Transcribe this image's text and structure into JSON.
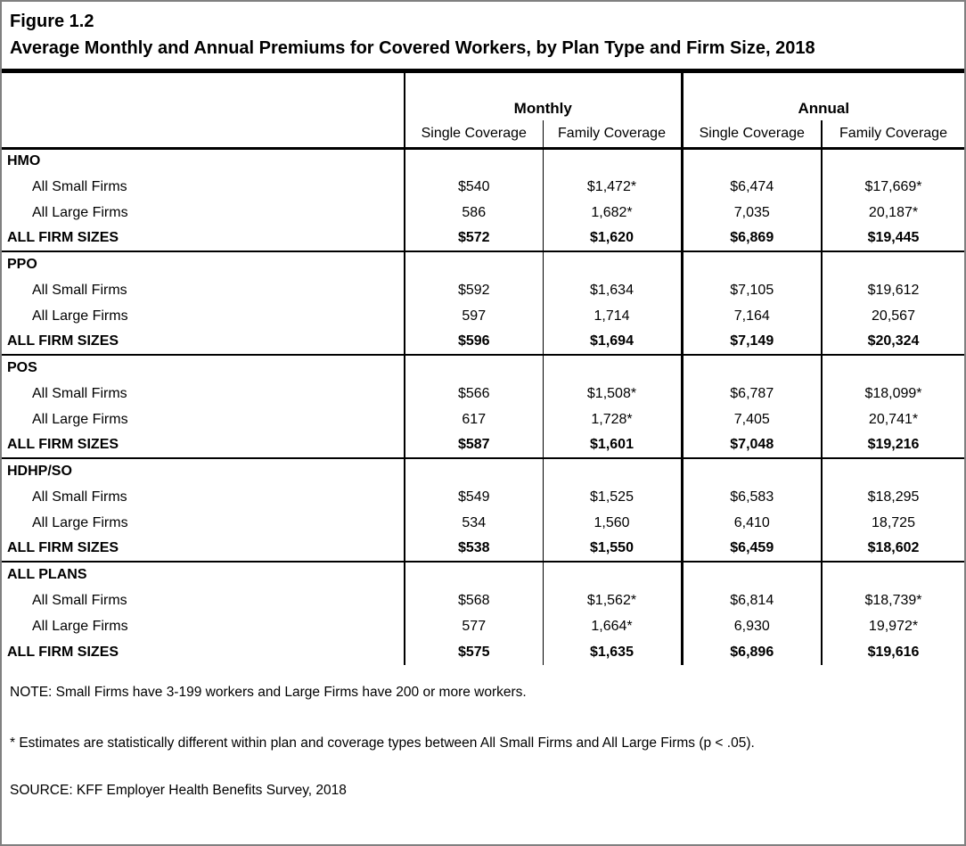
{
  "figure": {
    "label": "Figure 1.2",
    "title": "Average Monthly and Annual Premiums for Covered Workers, by Plan Type and Firm Size, 2018"
  },
  "colors": {
    "outer_border": "#808080",
    "rules": "#000000",
    "background": "#ffffff"
  },
  "table": {
    "col_groups": [
      {
        "label": "Monthly"
      },
      {
        "label": "Annual"
      }
    ],
    "sub_headers": [
      "Single Coverage",
      "Family Coverage",
      "Single Coverage",
      "Family Coverage"
    ],
    "sections": [
      {
        "name": "HMO",
        "rows": [
          {
            "label": "All Small Firms",
            "values": [
              "$540",
              "$1,472*",
              "$6,474",
              "$17,669*"
            ]
          },
          {
            "label": "All Large Firms",
            "values": [
              "586",
              "1,682*",
              "7,035",
              "20,187*"
            ]
          },
          {
            "label": "ALL FIRM SIZES",
            "values": [
              "$572",
              "$1,620",
              "$6,869",
              "$19,445"
            ]
          }
        ]
      },
      {
        "name": "PPO",
        "rows": [
          {
            "label": "All Small Firms",
            "values": [
              "$592",
              "$1,634",
              "$7,105",
              "$19,612"
            ]
          },
          {
            "label": "All Large Firms",
            "values": [
              "597",
              "1,714",
              "7,164",
              "20,567"
            ]
          },
          {
            "label": "ALL FIRM SIZES",
            "values": [
              "$596",
              "$1,694",
              "$7,149",
              "$20,324"
            ]
          }
        ]
      },
      {
        "name": "POS",
        "rows": [
          {
            "label": "All Small Firms",
            "values": [
              "$566",
              "$1,508*",
              "$6,787",
              "$18,099*"
            ]
          },
          {
            "label": "All Large Firms",
            "values": [
              "617",
              "1,728*",
              "7,405",
              "20,741*"
            ]
          },
          {
            "label": "ALL FIRM SIZES",
            "values": [
              "$587",
              "$1,601",
              "$7,048",
              "$19,216"
            ]
          }
        ]
      },
      {
        "name": "HDHP/SO",
        "rows": [
          {
            "label": "All Small Firms",
            "values": [
              "$549",
              "$1,525",
              "$6,583",
              "$18,295"
            ]
          },
          {
            "label": "All Large Firms",
            "values": [
              "534",
              "1,560",
              "6,410",
              "18,725"
            ]
          },
          {
            "label": "ALL FIRM SIZES",
            "values": [
              "$538",
              "$1,550",
              "$6,459",
              "$18,602"
            ]
          }
        ]
      },
      {
        "name": "ALL PLANS",
        "rows": [
          {
            "label": "All Small Firms",
            "values": [
              "$568",
              "$1,562*",
              "$6,814",
              "$18,739*"
            ]
          },
          {
            "label": "All Large Firms",
            "values": [
              "577",
              "1,664*",
              "6,930",
              "19,972*"
            ]
          },
          {
            "label": "ALL FIRM SIZES",
            "values": [
              "$575",
              "$1,635",
              "$6,896",
              "$19,616"
            ]
          }
        ]
      }
    ]
  },
  "notes": {
    "general": "NOTE: Small Firms have 3-199 workers and Large Firms have 200 or more workers.",
    "asterisk": "* Estimates are statistically different within plan and coverage types between All Small Firms and All Large Firms (p < .05).",
    "source": "SOURCE: KFF Employer Health Benefits Survey, 2018"
  }
}
